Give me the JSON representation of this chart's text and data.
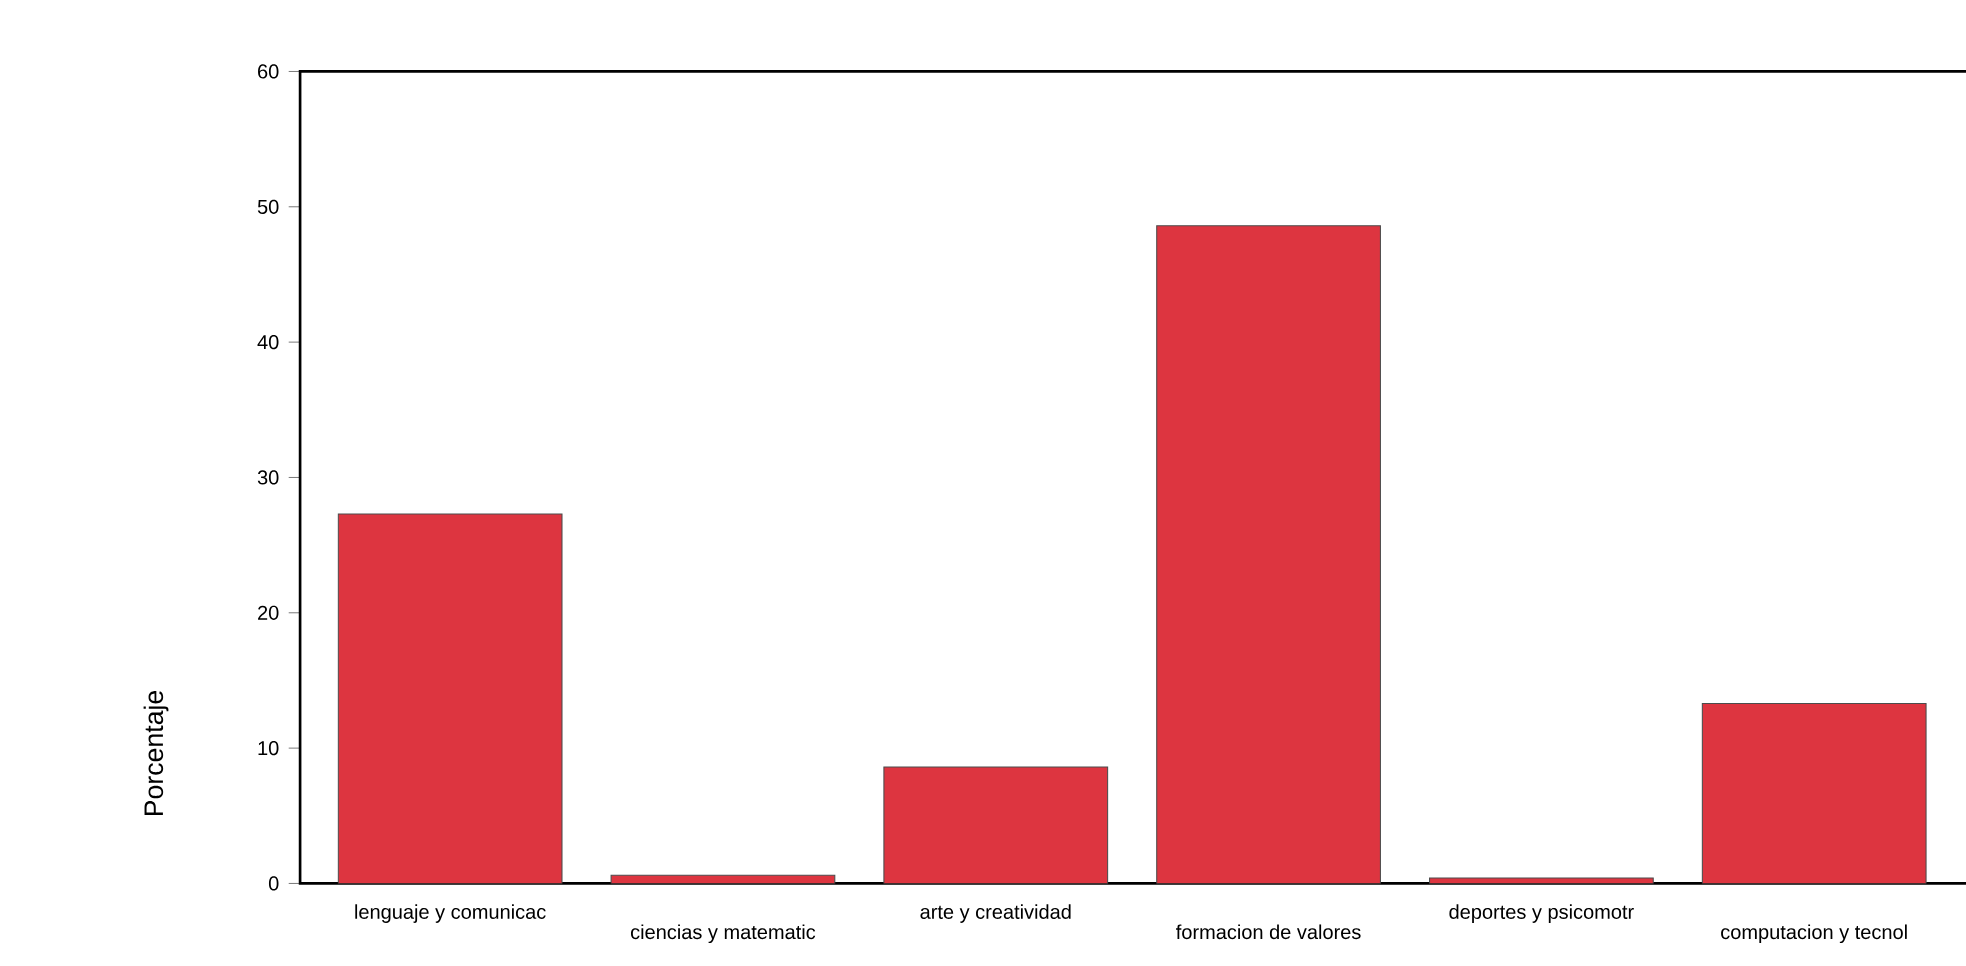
{
  "chart_data": {
    "type": "bar",
    "categories": [
      "lenguaje y comunicac",
      "ciencias y matematic",
      "arte y creatividad",
      "formacion de valores",
      "deportes y psicomotr",
      "computacion y tecnol"
    ],
    "values": [
      27.3,
      0.6,
      8.6,
      48.6,
      0.4,
      13.3
    ],
    "color": "#dd3540",
    "ylabel": "Porcentaje",
    "ylim": [
      0,
      60
    ],
    "yticks": [
      0,
      10,
      20,
      30,
      40,
      50,
      60
    ]
  }
}
